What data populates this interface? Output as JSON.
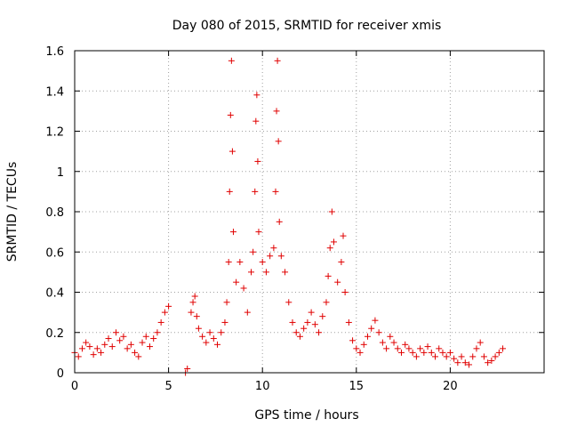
{
  "chart_data": {
    "type": "scatter",
    "title": "Day 080 of 2015, SRMTID for receiver xmis",
    "xlabel": "GPS time / hours",
    "ylabel": "SRMTID / TECUs",
    "xlim": [
      0,
      25
    ],
    "ylim": [
      0,
      1.6
    ],
    "xticks": [
      0,
      5,
      10,
      15,
      20
    ],
    "yticks": [
      0,
      0.2,
      0.4,
      0.6,
      0.8,
      1,
      1.2,
      1.4,
      1.6
    ],
    "xtick_labels": [
      "0",
      "5",
      "10",
      "15",
      "20"
    ],
    "ytick_labels": [
      "0",
      "0.2",
      "0.4",
      "0.6",
      "0.8",
      "1",
      "1.2",
      "1.4",
      "1.6"
    ],
    "grid": true,
    "marker": "plus",
    "marker_color": "#e00000",
    "series": [
      {
        "name": "SRMTID",
        "points": [
          [
            0.0,
            0.1
          ],
          [
            0.2,
            0.08
          ],
          [
            0.4,
            0.12
          ],
          [
            0.6,
            0.15
          ],
          [
            0.8,
            0.13
          ],
          [
            1.0,
            0.09
          ],
          [
            1.2,
            0.12
          ],
          [
            1.4,
            0.1
          ],
          [
            1.6,
            0.14
          ],
          [
            1.8,
            0.17
          ],
          [
            2.0,
            0.13
          ],
          [
            2.2,
            0.2
          ],
          [
            2.4,
            0.16
          ],
          [
            2.6,
            0.18
          ],
          [
            2.8,
            0.12
          ],
          [
            3.0,
            0.14
          ],
          [
            3.2,
            0.1
          ],
          [
            3.4,
            0.08
          ],
          [
            3.6,
            0.15
          ],
          [
            3.8,
            0.18
          ],
          [
            4.0,
            0.13
          ],
          [
            4.2,
            0.17
          ],
          [
            4.4,
            0.2
          ],
          [
            4.6,
            0.25
          ],
          [
            4.8,
            0.3
          ],
          [
            5.0,
            0.33
          ],
          [
            5.9,
            0.0
          ],
          [
            6.0,
            0.02
          ],
          [
            6.2,
            0.3
          ],
          [
            6.3,
            0.35
          ],
          [
            6.4,
            0.38
          ],
          [
            6.5,
            0.28
          ],
          [
            6.6,
            0.22
          ],
          [
            6.8,
            0.18
          ],
          [
            7.0,
            0.15
          ],
          [
            7.2,
            0.2
          ],
          [
            7.4,
            0.17
          ],
          [
            7.6,
            0.14
          ],
          [
            7.8,
            0.2
          ],
          [
            8.0,
            0.25
          ],
          [
            8.1,
            0.35
          ],
          [
            8.2,
            0.55
          ],
          [
            8.25,
            0.9
          ],
          [
            8.3,
            1.28
          ],
          [
            8.35,
            1.55
          ],
          [
            8.4,
            1.1
          ],
          [
            8.45,
            0.7
          ],
          [
            8.6,
            0.45
          ],
          [
            8.8,
            0.55
          ],
          [
            9.0,
            0.42
          ],
          [
            9.2,
            0.3
          ],
          [
            9.4,
            0.5
          ],
          [
            9.5,
            0.6
          ],
          [
            9.6,
            0.9
          ],
          [
            9.65,
            1.25
          ],
          [
            9.7,
            1.38
          ],
          [
            9.75,
            1.05
          ],
          [
            9.8,
            0.7
          ],
          [
            10.0,
            0.55
          ],
          [
            10.2,
            0.5
          ],
          [
            10.4,
            0.58
          ],
          [
            10.6,
            0.62
          ],
          [
            10.7,
            0.9
          ],
          [
            10.75,
            1.3
          ],
          [
            10.8,
            1.55
          ],
          [
            10.85,
            1.15
          ],
          [
            10.9,
            0.75
          ],
          [
            11.0,
            0.58
          ],
          [
            11.2,
            0.5
          ],
          [
            11.4,
            0.35
          ],
          [
            11.6,
            0.25
          ],
          [
            11.8,
            0.2
          ],
          [
            12.0,
            0.18
          ],
          [
            12.2,
            0.22
          ],
          [
            12.4,
            0.25
          ],
          [
            12.6,
            0.3
          ],
          [
            12.8,
            0.24
          ],
          [
            13.0,
            0.2
          ],
          [
            13.2,
            0.28
          ],
          [
            13.4,
            0.35
          ],
          [
            13.5,
            0.48
          ],
          [
            13.6,
            0.62
          ],
          [
            13.7,
            0.8
          ],
          [
            13.8,
            0.65
          ],
          [
            14.0,
            0.45
          ],
          [
            14.2,
            0.55
          ],
          [
            14.3,
            0.68
          ],
          [
            14.4,
            0.4
          ],
          [
            14.6,
            0.25
          ],
          [
            14.8,
            0.16
          ],
          [
            15.0,
            0.12
          ],
          [
            15.2,
            0.1
          ],
          [
            15.4,
            0.14
          ],
          [
            15.6,
            0.18
          ],
          [
            15.8,
            0.22
          ],
          [
            16.0,
            0.26
          ],
          [
            16.2,
            0.2
          ],
          [
            16.4,
            0.15
          ],
          [
            16.6,
            0.12
          ],
          [
            16.8,
            0.18
          ],
          [
            17.0,
            0.15
          ],
          [
            17.2,
            0.12
          ],
          [
            17.4,
            0.1
          ],
          [
            17.6,
            0.14
          ],
          [
            17.8,
            0.12
          ],
          [
            18.0,
            0.1
          ],
          [
            18.2,
            0.08
          ],
          [
            18.4,
            0.12
          ],
          [
            18.6,
            0.1
          ],
          [
            18.8,
            0.13
          ],
          [
            19.0,
            0.1
          ],
          [
            19.2,
            0.08
          ],
          [
            19.4,
            0.12
          ],
          [
            19.6,
            0.1
          ],
          [
            19.8,
            0.08
          ],
          [
            20.0,
            0.1
          ],
          [
            20.2,
            0.07
          ],
          [
            20.4,
            0.05
          ],
          [
            20.6,
            0.08
          ],
          [
            20.8,
            0.05
          ],
          [
            21.0,
            0.04
          ],
          [
            21.2,
            0.08
          ],
          [
            21.4,
            0.12
          ],
          [
            21.6,
            0.15
          ],
          [
            21.8,
            0.08
          ],
          [
            22.0,
            0.05
          ],
          [
            22.2,
            0.06
          ],
          [
            22.4,
            0.08
          ],
          [
            22.6,
            0.1
          ],
          [
            22.8,
            0.12
          ]
        ]
      }
    ]
  }
}
